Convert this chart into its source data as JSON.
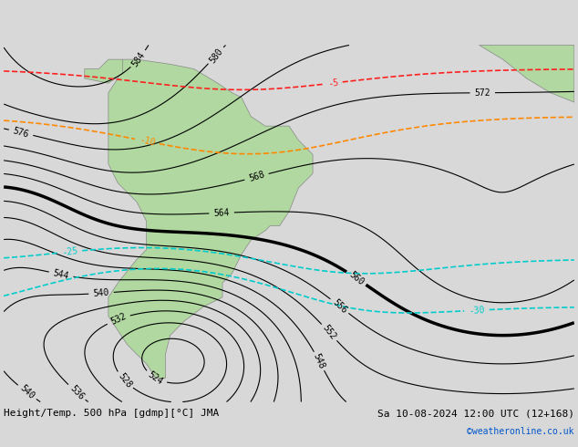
{
  "title_left": "Height/Temp. 500 hPa [gdmp][°C] JMA",
  "title_right": "Sa 10-08-2024 12:00 UTC (12+168)",
  "copyright": "©weatheronline.co.uk",
  "bg_color": "#d8d8d8",
  "land_color": "#b0d8a0",
  "border_color": "#888888",
  "contour_color": "#000000",
  "thick_contour_value": 560,
  "temp_colors": {
    "5": "#ff0000",
    "-5": "#ff0000",
    "-10": "#ff8800",
    "-25": "#00cccc",
    "-30": "#00cccc",
    "0": "#aacc00"
  },
  "label_fontsize": 7,
  "title_fontsize": 8,
  "copyright_color": "#0055cc"
}
